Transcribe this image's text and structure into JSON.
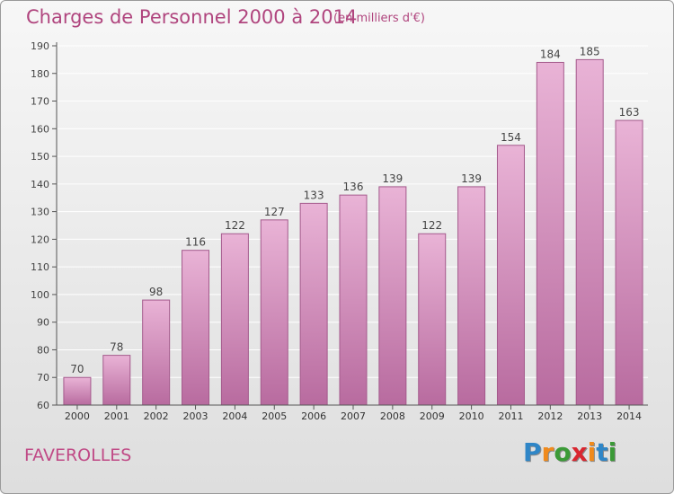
{
  "header": {
    "title": "Charges de Personnel 2000 à 2014",
    "subtitle": "(en milliers d'€)"
  },
  "footer": {
    "commune": "FAVEROLLES",
    "logo": {
      "letters": [
        "P",
        "r",
        "o",
        "x",
        "i",
        "t",
        "i"
      ],
      "colors": [
        "#2f86c7",
        "#f08a1c",
        "#3b9a37",
        "#d9262f",
        "#f08a1c",
        "#2f86c7",
        "#3b9a37"
      ]
    }
  },
  "colors": {
    "bar_top": "#e9b3d6",
    "bar_bottom": "#b86b9f",
    "bar_stroke": "#a45a8c",
    "axis": "#555555",
    "grid": "#ffffff"
  },
  "chart_data": {
    "type": "bar",
    "categories": [
      "2000",
      "2001",
      "2002",
      "2003",
      "2004",
      "2005",
      "2006",
      "2007",
      "2008",
      "2009",
      "2010",
      "2011",
      "2012",
      "2013",
      "2014"
    ],
    "values": [
      70,
      78,
      98,
      116,
      122,
      127,
      133,
      136,
      139,
      122,
      139,
      154,
      184,
      185,
      163
    ],
    "ylim": [
      60,
      190
    ],
    "yticks": [
      60,
      70,
      80,
      90,
      100,
      110,
      120,
      130,
      140,
      150,
      160,
      170,
      180,
      190
    ],
    "grid": true,
    "legend": "none"
  }
}
